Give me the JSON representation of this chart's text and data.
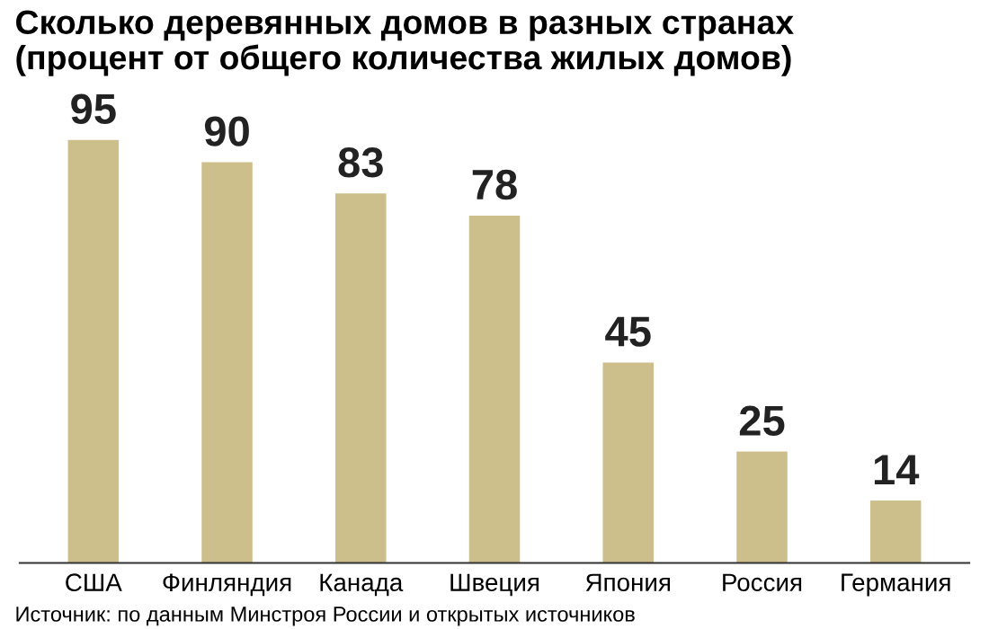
{
  "chart_data": {
    "type": "bar",
    "title": "Сколько деревянных домов в разных странах\n(процент от общего количества жилых домов)",
    "categories": [
      "США",
      "Финляндия",
      "Канада",
      "Швеция",
      "Япония",
      "Россия",
      "Германия"
    ],
    "values": [
      95,
      90,
      83,
      78,
      45,
      25,
      14
    ],
    "color": "#cdbf8c",
    "data_labels": true,
    "annotations": [
      "Источник: по данным Минстроя России и открытых источников"
    ]
  }
}
